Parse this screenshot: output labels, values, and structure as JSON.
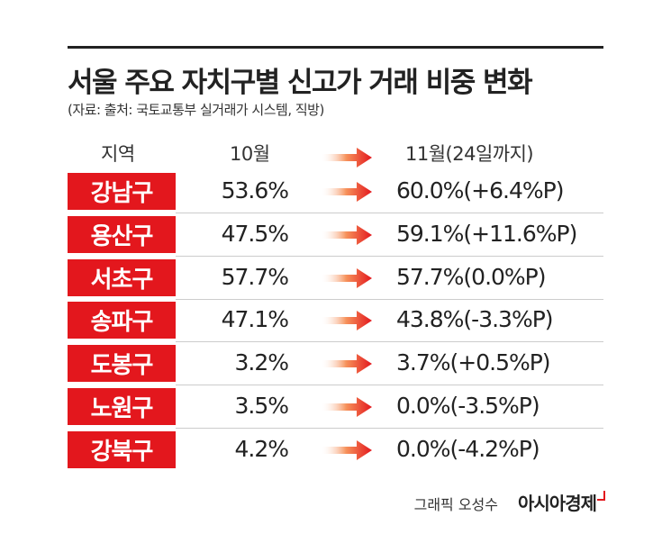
{
  "header": {
    "title": "서울 주요 자치구별 신고가 거래 비중 변화",
    "source": "(자료: 출처: 국토교통부 실거래가 시스템, 직방)"
  },
  "table": {
    "columns": [
      "지역",
      "10월",
      "11월(24일까지)"
    ],
    "rows": [
      [
        "강남구",
        "53.6%",
        "60.0%(+6.4%P)"
      ],
      [
        "용산구",
        "47.5%",
        "59.1%(+11.6%P)"
      ],
      [
        "서초구",
        "57.7%",
        "57.7%(0.0%P)"
      ],
      [
        "송파구",
        "47.1%",
        "43.8%(-3.3%P)"
      ],
      [
        "도봉구",
        "3.2%",
        "3.7%(+0.5%P)"
      ],
      [
        "노원구",
        "3.5%",
        "0.0%(-3.5%P)"
      ],
      [
        "강북구",
        "4.2%",
        "0.0%(-4.2%P)"
      ]
    ]
  },
  "footer": {
    "credit": "그래픽 오성수",
    "brand": "아시아경제"
  }
}
